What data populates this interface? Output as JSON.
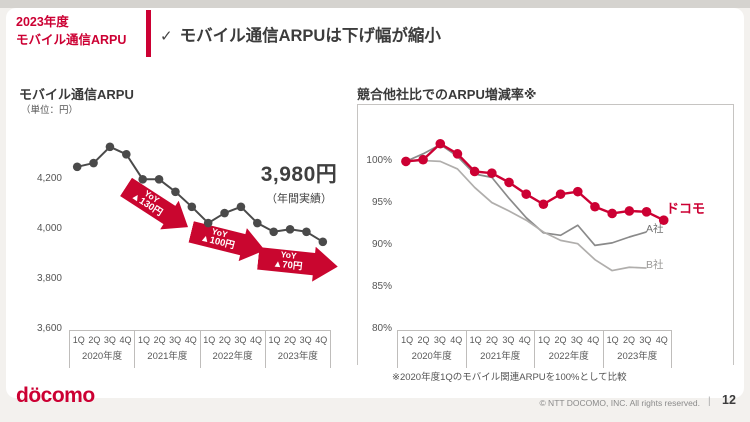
{
  "slide": {
    "kicker_line1": "2023年度",
    "kicker_line2": "モバイル通信ARPU",
    "check": "✓",
    "headline": "モバイル通信ARPUは下げ幅が縮小"
  },
  "colors": {
    "accent_red": "#cc0033",
    "dark_line": "#4a4a4a",
    "company_a_gray": "#8a8a8a",
    "company_b_gray": "#b0aeac"
  },
  "chart_data": [
    {
      "type": "line",
      "title": "モバイル通信ARPU",
      "unit": "（単位：円）",
      "years": [
        "2020年度",
        "2021年度",
        "2022年度",
        "2023年度"
      ],
      "quarters": [
        "1Q",
        "2Q",
        "3Q",
        "4Q"
      ],
      "values": [
        4250,
        4265,
        4330,
        4300,
        4200,
        4200,
        4150,
        4090,
        4025,
        4065,
        4090,
        4025,
        3990,
        4000,
        3990,
        3950
      ],
      "ylim": [
        3600,
        4400
      ],
      "ytick_values": [
        4200,
        4000,
        3800,
        3600
      ],
      "ytick_labels": [
        "4,200",
        "4,000",
        "3,800",
        "3,600"
      ],
      "annotation": {
        "value": "3,980円",
        "note": "（年間実績）"
      },
      "arrows": [
        {
          "label": "YoY",
          "amount": "▲130円"
        },
        {
          "label": "YoY",
          "amount": "▲100円"
        },
        {
          "label": "YoY",
          "amount": "▲70円"
        }
      ]
    },
    {
      "type": "line",
      "title": "競合他社比でのARPU増減率※",
      "years": [
        "2020年度",
        "2021年度",
        "2022年度",
        "2023年度"
      ],
      "quarters": [
        "1Q",
        "2Q",
        "3Q",
        "4Q"
      ],
      "series": [
        {
          "name": "ドコモ",
          "values": [
            100.0,
            100.2,
            102.1,
            100.9,
            98.8,
            98.6,
            97.5,
            96.1,
            94.9,
            96.1,
            96.4,
            94.6,
            93.8,
            94.1,
            94.0,
            93.0
          ]
        },
        {
          "name": "A社",
          "values": [
            100.0,
            100.9,
            102.0,
            100.6,
            98.5,
            98.1,
            95.6,
            93.3,
            91.5,
            91.2,
            92.4,
            90.0,
            90.3,
            91.0,
            91.6
          ]
        },
        {
          "name": "B社",
          "values": [
            100.0,
            100.1,
            100.0,
            99.1,
            96.9,
            95.1,
            94.1,
            93.0,
            91.6,
            90.6,
            90.2,
            88.3,
            87.0,
            87.4,
            87.3
          ]
        }
      ],
      "ylim": [
        80,
        103
      ],
      "ytick_values": [
        100,
        95,
        90,
        85,
        80
      ],
      "ytick_labels": [
        "100%",
        "95%",
        "90%",
        "85%",
        "80%"
      ],
      "footnote": "※2020年度1Qのモバイル関連ARPUを100%として比較"
    }
  ],
  "footer": {
    "logo": "döcomo",
    "copyright": "© NTT DOCOMO, INC.   All rights reserved.",
    "divider": "|",
    "page": "12"
  }
}
